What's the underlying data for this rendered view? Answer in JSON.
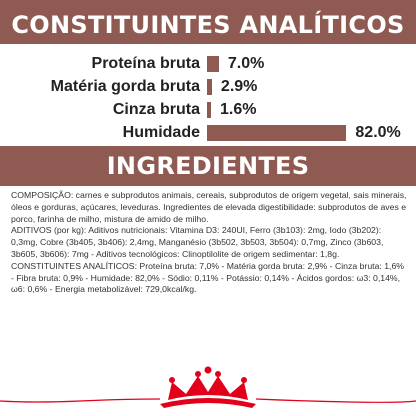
{
  "analytic_section": {
    "title": "CONSTITUINTES ANALÍTICOS",
    "rows": [
      {
        "label": "Proteína bruta",
        "value_label": "7.0%",
        "value": 7.0
      },
      {
        "label": "Matéria gorda bruta",
        "value_label": "2.9%",
        "value": 2.9
      },
      {
        "label": "Cinza bruta",
        "value_label": "1.6%",
        "value": 1.6
      },
      {
        "label": "Humidade",
        "value_label": "82.0%",
        "value": 82.0
      }
    ],
    "bar_color": "#8f5a52"
  },
  "ingredients_section": {
    "title": "INGREDIENTES",
    "paragraphs": [
      "COMPOSIÇÃO: carnes e subprodutos animais, cereais, subprodutos de origem vegetal, sais minerais, óleos e gorduras, açúcares, leveduras. Ingredientes de elevada digestibilidade: subprodutos de aves e porco, farinha de milho, mistura de amido de milho.",
      "ADITIVOS (por kg): Aditivos nutricionais: Vitamina D3: 240UI, Ferro (3b103): 2mg, Iodo (3b202): 0,3mg, Cobre (3b405, 3b406): 2,4mg, Manganésio (3b502, 3b503, 3b504): 0,7mg, Zinco (3b603, 3b605, 3b606): 7mg - Aditivos tecnológicos: Clinoptilolite de origem sedimentar: 1,8g.",
      "CONSTITUINTES ANALÍTICOS: Proteína bruta: 7,0% - Matéria gorda bruta: 2,9% - Cinza bruta: 1,6% - Fibra bruta: 0,9% - Humidade: 82,0% - Sódio: 0,11% - Potássio: 0,14% - Ácidos gordos: ω3: 0,14%, ω6: 0,6% - Energia metabolizável: 729,0kcal/kg."
    ]
  },
  "brand": {
    "logo": "royal-canin-crown-logo",
    "accent_color": "#e2001a"
  }
}
